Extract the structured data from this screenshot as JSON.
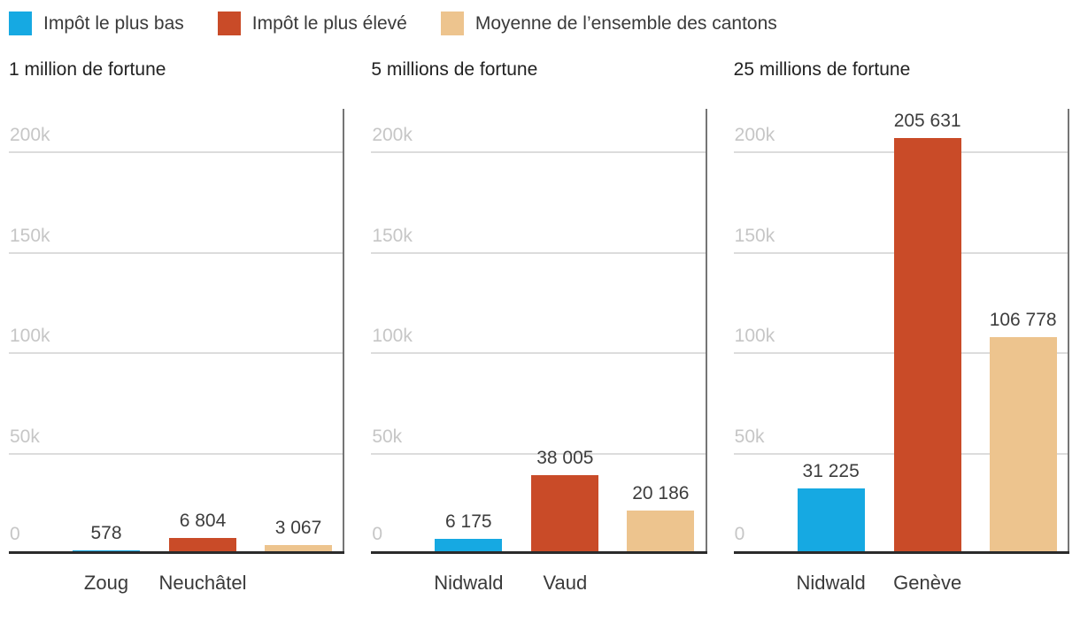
{
  "chart_data": {
    "type": "bar",
    "title": "",
    "legend_position": "top-left",
    "grid": true,
    "legend": [
      {
        "name": "lowest-tax",
        "label": "Impôt le plus bas",
        "color": "#16a9e2"
      },
      {
        "name": "highest-tax",
        "label": "Impôt le plus élevé",
        "color": "#c94b28"
      },
      {
        "name": "cantons-average",
        "label": "Moyenne de l’ensemble des cantons",
        "color": "#edc48e"
      }
    ],
    "axis": {
      "ylim": [
        0,
        222000
      ],
      "ticks": [
        {
          "label": "0",
          "value": 0
        },
        {
          "label": "50k",
          "value": 50000
        },
        {
          "label": "100k",
          "value": 100000
        },
        {
          "label": "150k",
          "value": 150000
        },
        {
          "label": "200k",
          "value": 200000
        }
      ]
    },
    "panels": [
      {
        "title": "1 million de fortune",
        "bars": [
          {
            "series": "Impôt le plus bas",
            "canton": "Zoug",
            "value": 578,
            "label": "578"
          },
          {
            "series": "Impôt le plus élevé",
            "canton": "Neuchâtel",
            "value": 6804,
            "label": "6 804"
          },
          {
            "series": "Moyenne de l’ensemble des cantons",
            "canton": "",
            "value": 3067,
            "label": "3 067"
          }
        ]
      },
      {
        "title": "5 millions de fortune",
        "bars": [
          {
            "series": "Impôt le plus bas",
            "canton": "Nidwald",
            "value": 6175,
            "label": "6 175"
          },
          {
            "series": "Impôt le plus élevé",
            "canton": "Vaud",
            "value": 38005,
            "label": "38 005"
          },
          {
            "series": "Moyenne de l’ensemble des cantons",
            "canton": "",
            "value": 20186,
            "label": "20 186"
          }
        ]
      },
      {
        "title": "25 millions de fortune",
        "bars": [
          {
            "series": "Impôt le plus bas",
            "canton": "Nidwald",
            "value": 31225,
            "label": "31 225"
          },
          {
            "series": "Impôt le plus élevé",
            "canton": "Genève",
            "value": 205631,
            "label": "205 631"
          },
          {
            "series": "Moyenne de l’ensemble des cantons",
            "canton": "",
            "value": 106778,
            "label": "106 778"
          }
        ]
      }
    ]
  }
}
